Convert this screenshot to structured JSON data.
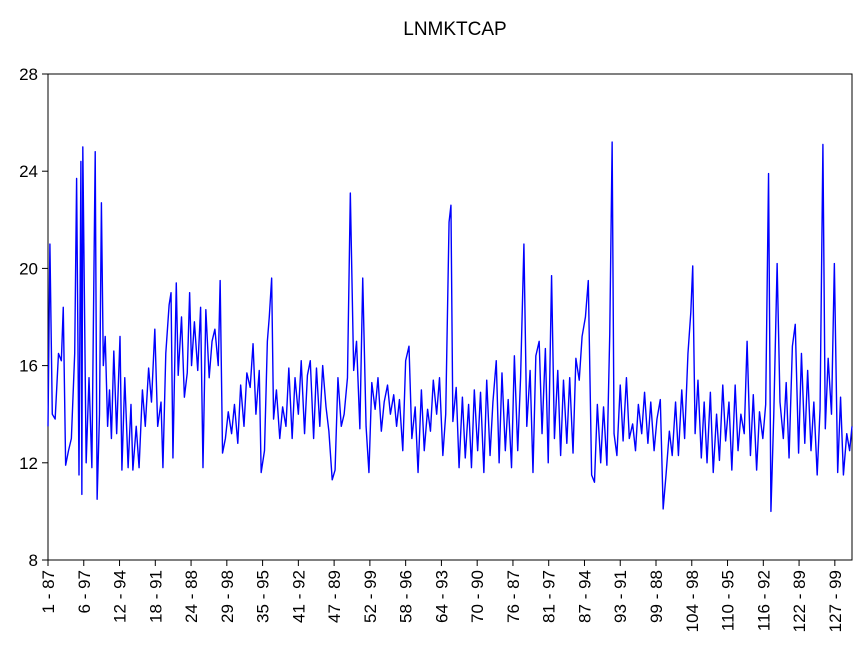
{
  "chart_data": {
    "type": "line",
    "title": "LNMKTCAP",
    "ylim": [
      8,
      28
    ],
    "yticks": [
      8,
      12,
      16,
      20,
      24,
      28
    ],
    "xlim": [
      0,
      1686
    ],
    "xticks": [
      {
        "value": 0,
        "label": "1 - 87"
      },
      {
        "value": 75,
        "label": "6 - 97"
      },
      {
        "value": 150,
        "label": "12 - 94"
      },
      {
        "value": 225,
        "label": "18 - 91"
      },
      {
        "value": 300,
        "label": "24 - 88"
      },
      {
        "value": 375,
        "label": "29 - 98"
      },
      {
        "value": 450,
        "label": "35 - 95"
      },
      {
        "value": 525,
        "label": "41 - 92"
      },
      {
        "value": 600,
        "label": "47 - 89"
      },
      {
        "value": 675,
        "label": "52 - 99"
      },
      {
        "value": 750,
        "label": "58 - 96"
      },
      {
        "value": 825,
        "label": "64 - 93"
      },
      {
        "value": 900,
        "label": "70 - 90"
      },
      {
        "value": 975,
        "label": "76 - 87"
      },
      {
        "value": 1050,
        "label": "81 - 97"
      },
      {
        "value": 1125,
        "label": "87 - 94"
      },
      {
        "value": 1200,
        "label": "93 - 91"
      },
      {
        "value": 1275,
        "label": "99 - 88"
      },
      {
        "value": 1350,
        "label": "104 - 98"
      },
      {
        "value": 1425,
        "label": "110 - 95"
      },
      {
        "value": 1500,
        "label": "116 - 92"
      },
      {
        "value": 1575,
        "label": "122 - 89"
      },
      {
        "value": 1650,
        "label": "127 - 99"
      }
    ],
    "color": "#0000ff",
    "x": [
      0,
      4,
      9,
      15,
      22,
      28,
      32,
      37,
      43,
      49,
      56,
      60,
      65,
      69,
      71,
      73,
      80,
      86,
      92,
      99,
      103,
      108,
      112,
      116,
      120,
      125,
      129,
      133,
      138,
      144,
      151,
      155,
      161,
      168,
      174,
      178,
      185,
      191,
      198,
      204,
      211,
      217,
      224,
      230,
      237,
      241,
      247,
      254,
      258,
      262,
      269,
      273,
      280,
      286,
      292,
      297,
      301,
      307,
      314,
      320,
      325,
      331,
      338,
      344,
      350,
      357,
      361,
      366,
      372,
      378,
      385,
      391,
      398,
      404,
      411,
      417,
      424,
      430,
      436,
      443,
      447,
      454,
      460,
      464,
      469,
      473,
      479,
      486,
      492,
      499,
      505,
      512,
      518,
      525,
      531,
      538,
      544,
      550,
      557,
      563,
      570,
      576,
      583,
      589,
      596,
      602,
      608,
      615,
      621,
      628,
      634,
      641,
      647,
      654,
      660,
      667,
      673,
      679,
      686,
      692,
      699,
      705,
      712,
      718,
      725,
      731,
      737,
      744,
      750,
      757,
      763,
      770,
      776,
      783,
      789,
      796,
      802,
      808,
      815,
      821,
      828,
      834,
      841,
      845,
      849,
      856,
      862,
      869,
      875,
      882,
      888,
      894,
      901,
      907,
      914,
      920,
      927,
      933,
      940,
      946,
      952,
      959,
      965,
      972,
      978,
      985,
      991,
      998,
      1004,
      1011,
      1017,
      1023,
      1030,
      1036,
      1043,
      1049,
      1056,
      1062,
      1069,
      1075,
      1081,
      1088,
      1094,
      1101,
      1107,
      1114,
      1120,
      1127,
      1133,
      1140,
      1146,
      1152,
      1159,
      1165,
      1172,
      1178,
      1183,
      1187,
      1193,
      1200,
      1206,
      1213,
      1219,
      1226,
      1232,
      1238,
      1245,
      1251,
      1258,
      1264,
      1271,
      1277,
      1284,
      1290,
      1296,
      1303,
      1309,
      1316,
      1322,
      1329,
      1335,
      1342,
      1348,
      1352,
      1357,
      1363,
      1370,
      1376,
      1382,
      1389,
      1395,
      1402,
      1408,
      1415,
      1421,
      1428,
      1434,
      1441,
      1447,
      1453,
      1460,
      1466,
      1473,
      1479,
      1486,
      1492,
      1499,
      1505,
      1511,
      1516,
      1522,
      1529,
      1535,
      1542,
      1548,
      1554,
      1561,
      1567,
      1574,
      1580,
      1587,
      1593,
      1600,
      1606,
      1613,
      1619,
      1625,
      1630,
      1636,
      1643,
      1649,
      1656,
      1662,
      1668,
      1675,
      1681,
      1686
    ],
    "values": [
      13.5,
      21,
      14,
      13.8,
      16.5,
      16.2,
      18.4,
      11.9,
      12.5,
      13,
      16.5,
      23.7,
      11.5,
      24.4,
      10.7,
      25,
      12,
      15.5,
      11.8,
      24.8,
      10.5,
      14,
      22.7,
      16,
      17.2,
      13.5,
      15,
      13,
      16.6,
      13.2,
      17.2,
      11.7,
      15.5,
      11.8,
      14.4,
      11.7,
      13.5,
      11.8,
      15,
      13.5,
      15.9,
      14.5,
      17.5,
      13.5,
      14.5,
      11.8,
      16.5,
      18.5,
      19,
      12.2,
      19.4,
      15.6,
      18,
      14.7,
      15.7,
      19,
      16,
      17.8,
      15.8,
      18.4,
      11.8,
      18.3,
      15.5,
      17,
      17.5,
      16,
      19.5,
      12.4,
      13,
      14.1,
      13.2,
      14.4,
      12.8,
      15.2,
      13.5,
      15.7,
      15.1,
      16.9,
      14,
      15.8,
      11.6,
      12.5,
      17,
      18,
      19.6,
      13.8,
      15,
      13,
      14.3,
      13.5,
      15.9,
      13,
      15.5,
      14,
      16.2,
      13.2,
      15.6,
      16.2,
      13,
      15.9,
      13.5,
      16,
      14.3,
      13.3,
      11.3,
      11.7,
      15.5,
      13.5,
      14,
      15.5,
      23.1,
      15.8,
      17,
      13.4,
      19.6,
      13.5,
      11.6,
      15.3,
      14.2,
      15.5,
      13.3,
      14.5,
      15.2,
      14,
      14.8,
      13.5,
      14.6,
      12.5,
      16.2,
      16.8,
      13,
      14.3,
      11.6,
      15,
      12.5,
      14.2,
      13.3,
      15.4,
      14,
      15.5,
      12.3,
      14,
      21.9,
      22.6,
      13.7,
      15.1,
      11.8,
      14.7,
      12.2,
      14.4,
      11.8,
      15,
      12.5,
      14.9,
      11.6,
      15.4,
      12.3,
      14.5,
      16.2,
      12,
      15.7,
      12.5,
      14.6,
      11.8,
      16.4,
      12.5,
      15.5,
      21,
      13.5,
      15.8,
      11.6,
      16.4,
      17,
      13.2,
      16.7,
      12,
      19.7,
      13,
      15.8,
      12.3,
      15.4,
      12.8,
      15.5,
      12.4,
      16.3,
      15.4,
      17.2,
      18,
      19.5,
      11.5,
      11.2,
      14.4,
      12,
      14.3,
      11.9,
      17.3,
      25.2,
      13.2,
      12.3,
      15.2,
      12.9,
      15.5,
      13,
      13.6,
      12.5,
      14.4,
      13.2,
      14.9,
      12.8,
      14.5,
      12.5,
      13.8,
      14.6,
      10.1,
      11.5,
      13.3,
      12.3,
      14.5,
      12.3,
      15,
      13,
      16.5,
      18.2,
      20.1,
      13.2,
      15.4,
      12.2,
      14.5,
      12,
      14.9,
      11.6,
      14,
      12.1,
      15.2,
      12.9,
      14.5,
      11.7,
      15.2,
      12.5,
      14,
      13.2,
      17,
      12.3,
      14.8,
      11.7,
      14.1,
      13,
      14.4,
      23.9,
      10,
      14,
      20.2,
      14.5,
      13,
      15.3,
      12.2,
      16.8,
      17.7,
      12.4,
      16.5,
      12.8,
      15.8,
      12.5,
      14.5,
      11.5,
      14.2,
      25.1,
      13.4,
      16.3,
      14,
      20.2,
      11.6,
      14.7,
      11.5,
      13.2,
      12.5,
      13.5
    ]
  }
}
